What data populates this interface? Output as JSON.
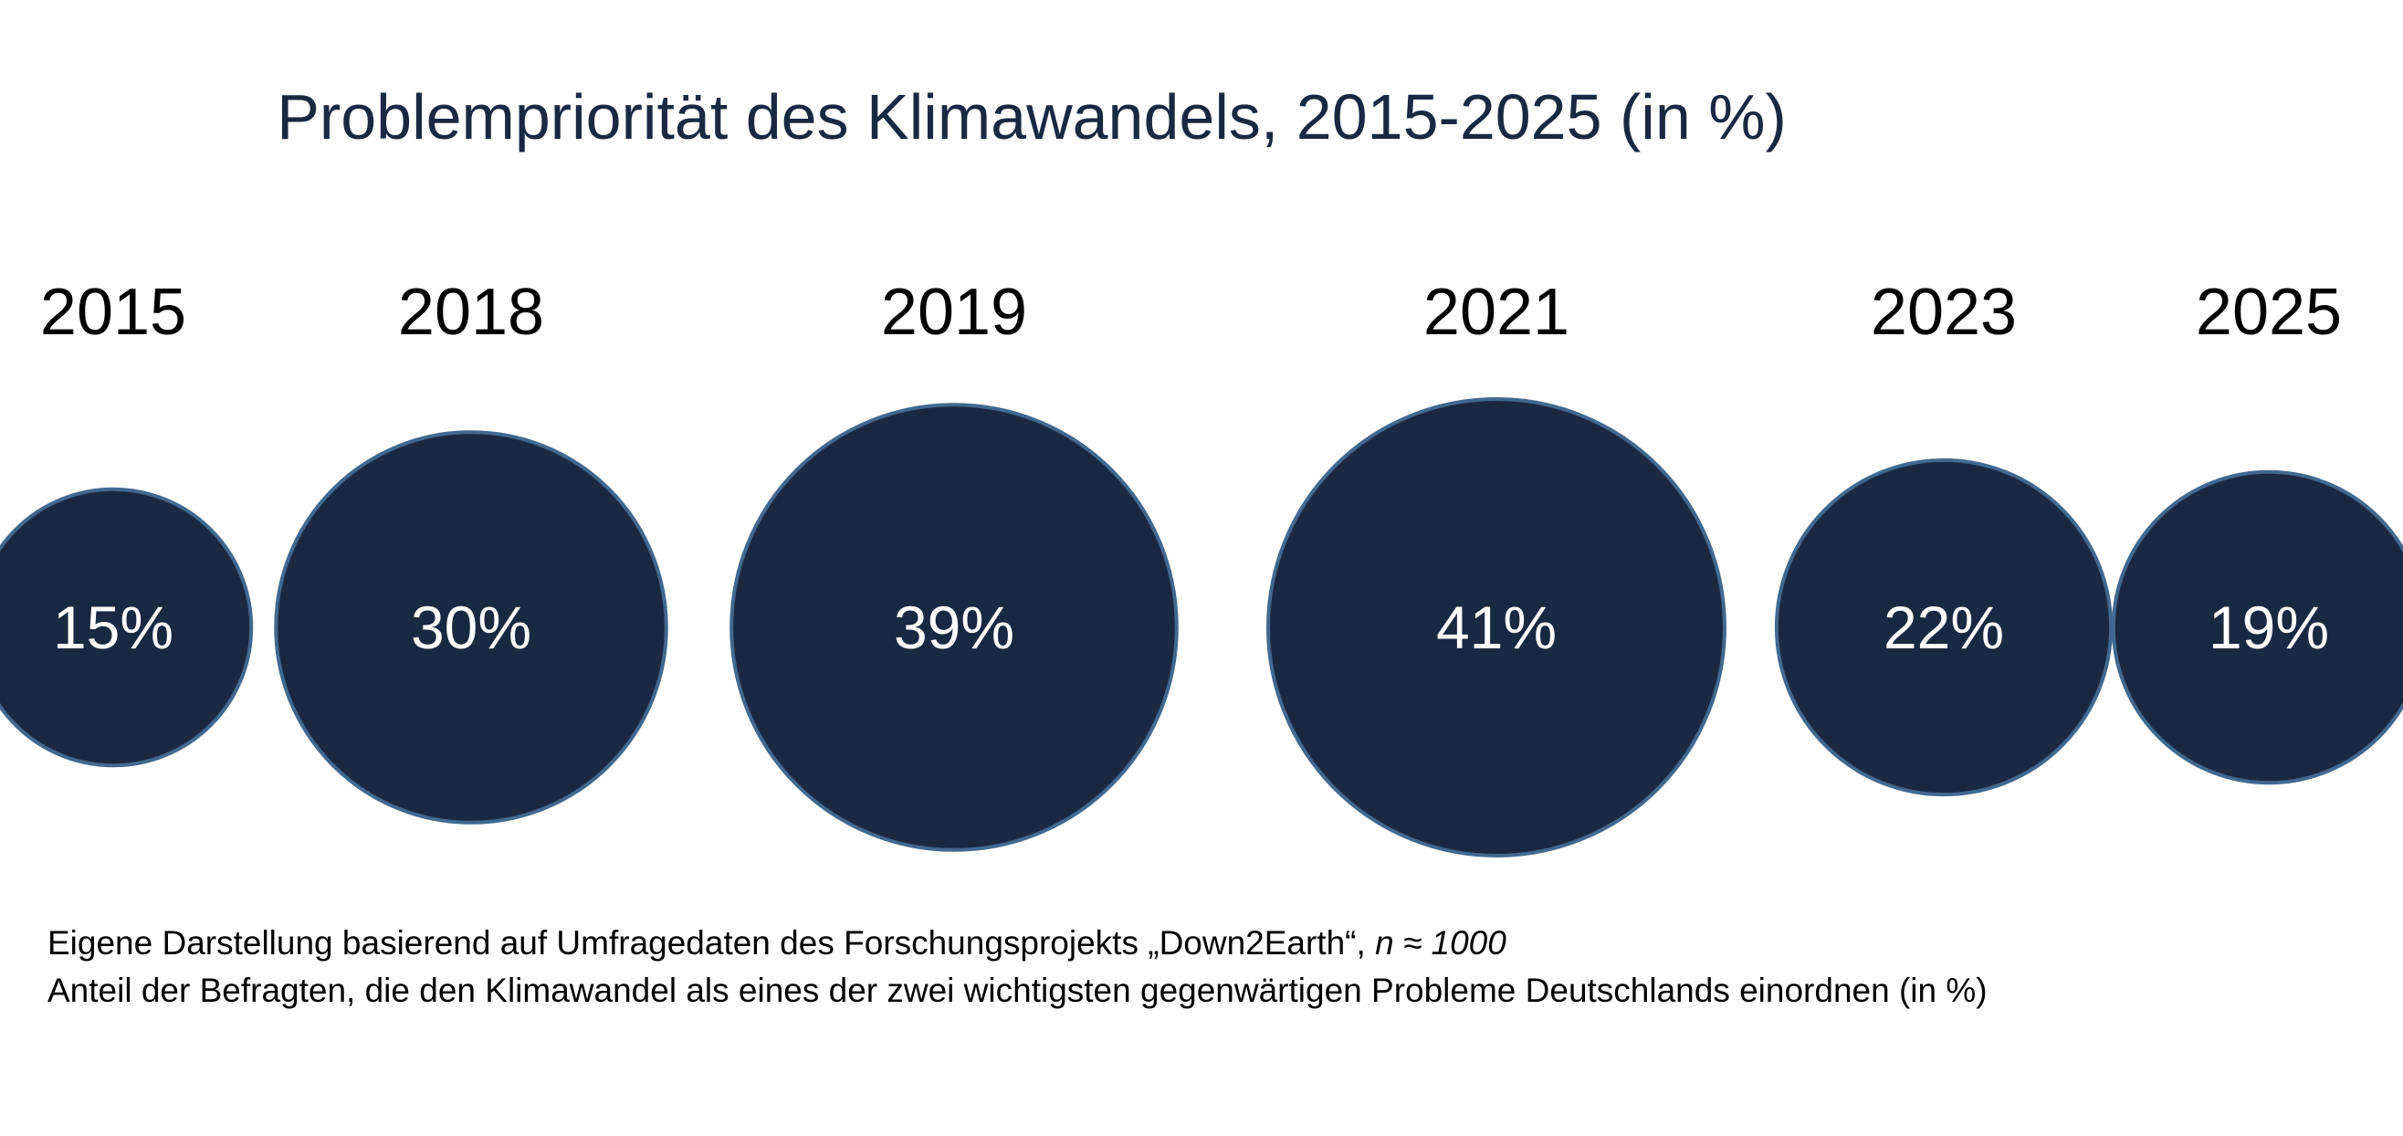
{
  "chart_data": {
    "type": "bubble",
    "title": "Problempriorität des Klimawandels, 2015-2025 (in  %)",
    "categories": [
      "2015",
      "2018",
      "2019",
      "2021",
      "2023",
      "2025"
    ],
    "values": [
      15,
      30,
      39,
      41,
      22,
      19
    ],
    "value_labels": [
      "15%",
      "30%",
      "39%",
      "41%",
      "22%",
      "19%"
    ],
    "unit": "%",
    "colors": {
      "bubble_fill": "#1a2942",
      "bubble_stroke": "#41698f",
      "label": "#ffffff",
      "title": "#1a2942"
    }
  },
  "notes": {
    "line1_text": "Eigene Darstellung basierend auf Umfragedaten des Forschungsprojekts  „Down2Earth“, ",
    "line1_italic": "n ≈ 1000",
    "line2": "Anteil der Befragten, die den Klimawandel als eines der zwei wichtigsten gegenwärtigen Probleme Deutschlands einordnen (in %)"
  }
}
